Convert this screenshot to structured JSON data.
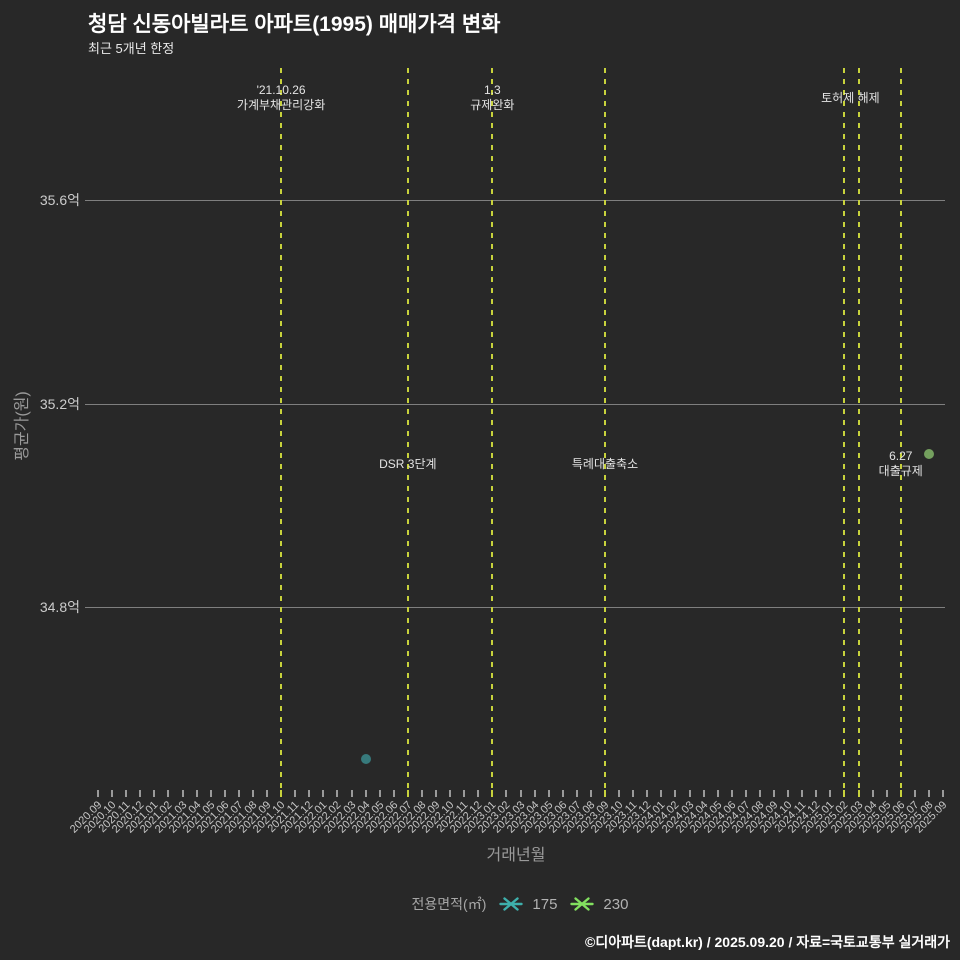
{
  "chart_data": {
    "type": "scatter",
    "title": "청담 신동아빌라트 아파트(1995) 매매가격 변화",
    "subtitle": "최근 5개년 한정",
    "xlabel": "거래년월",
    "ylabel": "평균가(원)",
    "unit": "억",
    "ylim": [
      34.44,
      35.86
    ],
    "grid": "horizontal-only",
    "y_ticks": [
      {
        "label": "35.6억",
        "value": 35.6
      },
      {
        "label": "35.2억",
        "value": 35.2
      },
      {
        "label": "34.8억",
        "value": 34.8
      }
    ],
    "x_categories": [
      "2020.09",
      "2020.10",
      "2020.11",
      "2020.12",
      "2021.01",
      "2021.02",
      "2021.03",
      "2021.04",
      "2021.05",
      "2021.06",
      "2021.07",
      "2021.08",
      "2021.09",
      "2021.10",
      "2021.11",
      "2021.12",
      "2022.01",
      "2022.02",
      "2022.03",
      "2022.04",
      "2022.05",
      "2022.06",
      "2022.07",
      "2022.08",
      "2022.09",
      "2022.10",
      "2022.11",
      "2022.12",
      "2023.01",
      "2023.02",
      "2023.03",
      "2023.04",
      "2023.05",
      "2023.06",
      "2023.07",
      "2023.08",
      "2023.09",
      "2023.10",
      "2023.11",
      "2023.12",
      "2024.01",
      "2024.02",
      "2024.03",
      "2024.04",
      "2024.05",
      "2024.06",
      "2024.07",
      "2024.08",
      "2024.09",
      "2024.10",
      "2024.11",
      "2024.12",
      "2025.01",
      "2025.02",
      "2025.03",
      "2025.04",
      "2025.05",
      "2025.06",
      "2025.07",
      "2025.08",
      "2025.09"
    ],
    "series": [
      {
        "name": "175",
        "point_color": "#377a7c",
        "legend_color": "#3eb0ac",
        "points": [
          {
            "x": "2022.04",
            "y": 34.5
          }
        ]
      },
      {
        "name": "230",
        "point_color": "#74a05e",
        "legend_color": "#82e05f",
        "points": [
          {
            "x": "2025.08",
            "y": 35.1
          }
        ]
      }
    ],
    "events": [
      {
        "x": "2021.10",
        "label_lines": [
          "'21.10.26",
          "가계부채관리강화"
        ],
        "label_pos": "top",
        "label_dx": 0
      },
      {
        "x": "2022.07",
        "label_lines": [
          "DSR 3단계"
        ],
        "label_pos": "mid",
        "label_dx": 0
      },
      {
        "x": "2023.01",
        "label_lines": [
          "1.3",
          "규제완화"
        ],
        "label_pos": "top",
        "label_dx": 0
      },
      {
        "x": "2023.09",
        "label_lines": [
          "특례대출축소"
        ],
        "label_pos": "mid",
        "label_dx": 0
      },
      {
        "x": "2025.02",
        "label_lines": [
          "토허제 해제"
        ],
        "label_pos": "top",
        "label_dx": 6
      },
      {
        "x": "2025.03",
        "label_lines": [],
        "label_pos": "top",
        "label_dx": 0
      },
      {
        "x": "2025.06",
        "label_lines": [
          "6.27",
          "대출규제"
        ],
        "label_pos": "mid",
        "label_dx": 0
      }
    ],
    "event_line_color": "#c8d23c"
  },
  "legend": {
    "title": "전용면적(㎡)",
    "items": [
      {
        "label": "175"
      },
      {
        "label": "230"
      }
    ]
  },
  "footer": {
    "credit": "©디아파트(dapt.kr) / 2025.09.20 / 자료=국토교통부 실거래가"
  }
}
